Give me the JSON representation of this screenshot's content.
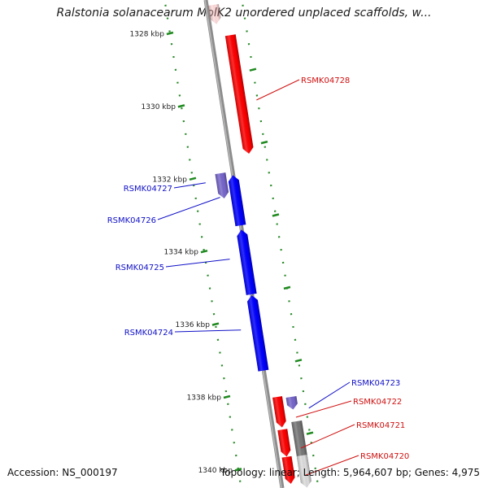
{
  "title": "Ralstonia solanacearum MolK2 unordered unplaced scaffolds, w...",
  "accession": "Accession: NS_000197",
  "summary": "Topology: linear; Length: 5,964,607 bp; Genes: 4,975",
  "ticks": [
    {
      "kbp": 1328,
      "label": "1328 kbp"
    },
    {
      "kbp": 1330,
      "label": "1330 kbp"
    },
    {
      "kbp": 1332,
      "label": "1332 kbp"
    },
    {
      "kbp": 1334,
      "label": "1334 kbp"
    },
    {
      "kbp": 1336,
      "label": "1336 kbp"
    },
    {
      "kbp": 1338,
      "label": "1338 kbp"
    },
    {
      "kbp": 1340,
      "label": "1340 kbp"
    }
  ],
  "genes": [
    {
      "id": "RSMK04728",
      "start_kbp": 1328.05,
      "end_kbp": 1331.35,
      "strand": "+",
      "color": "#ff0000"
    },
    {
      "id": "RSMK04727",
      "start_kbp": 1331.85,
      "end_kbp": 1332.55,
      "strand": "+",
      "color": "#7766cc"
    },
    {
      "id": "RSMK04726",
      "start_kbp": 1331.9,
      "end_kbp": 1333.3,
      "strand": "-",
      "color": "#0000ff"
    },
    {
      "id": "RSMK04725",
      "start_kbp": 1333.4,
      "end_kbp": 1335.2,
      "strand": "-",
      "color": "#0000ff"
    },
    {
      "id": "RSMK04724",
      "start_kbp": 1335.2,
      "end_kbp": 1337.3,
      "strand": "-",
      "color": "#0000ff"
    },
    {
      "id": "RSMK04723",
      "start_kbp": 1338.0,
      "end_kbp": 1338.35,
      "strand": "+",
      "color": "#7766cc"
    },
    {
      "id": "RSMK04722",
      "start_kbp": 1338.0,
      "end_kbp": 1338.85,
      "strand": "+",
      "color": "#ff0000"
    },
    {
      "id": "RSMK04721",
      "start_kbp": 1338.9,
      "end_kbp": 1339.65,
      "strand": "+",
      "color": "#ff0000"
    },
    {
      "id": "RSMK04720",
      "start_kbp": 1339.65,
      "end_kbp": 1340.4,
      "strand": "+",
      "color": "#ff0000"
    }
  ]
}
